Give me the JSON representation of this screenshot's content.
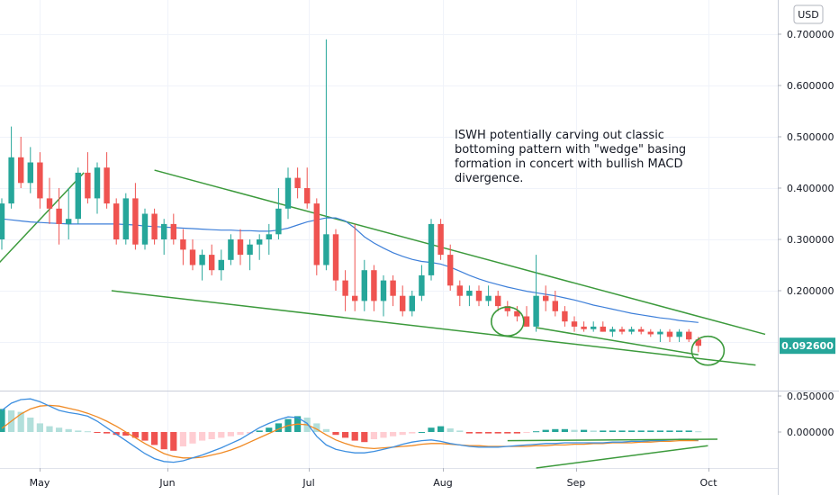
{
  "currency_badge": "USD",
  "annotation_lines": [
    "ISWH potentially carving out classic",
    "bottoming pattern with \"wedge\" basing",
    "formation in concert with bullish MACD",
    "divergence."
  ],
  "last_price_label": "0.092600",
  "colors": {
    "up": "#26a69a",
    "down": "#ef5350",
    "ma": "#3d7fd9",
    "trendline": "#3c9a3c",
    "macd": "#3d8fe0",
    "signal": "#f08a24",
    "hist_up_strong": "#26a69a",
    "hist_up_weak": "#b2dfdb",
    "hist_down_strong": "#ef5350",
    "hist_down_weak": "#ffcdd2",
    "grid": "#f0f3fa",
    "price_badge": "#26a69a"
  },
  "chart_data": [
    {
      "type": "candlestick",
      "title": "",
      "x_ticks": [
        "May",
        "Jun",
        "Jul",
        "Aug",
        "Sep",
        "Oct"
      ],
      "y_ticks": [
        "0.700000",
        "0.600000",
        "0.500000",
        "0.400000",
        "0.300000",
        "0.200000"
      ],
      "ylim": [
        0.01,
        0.76
      ],
      "grid": true,
      "candles": [
        [
          0.3,
          0.38,
          0.28,
          0.37
        ],
        [
          0.37,
          0.52,
          0.36,
          0.46
        ],
        [
          0.46,
          0.5,
          0.4,
          0.41
        ],
        [
          0.41,
          0.48,
          0.39,
          0.45
        ],
        [
          0.45,
          0.47,
          0.36,
          0.38
        ],
        [
          0.38,
          0.42,
          0.33,
          0.36
        ],
        [
          0.36,
          0.4,
          0.29,
          0.33
        ],
        [
          0.33,
          0.4,
          0.3,
          0.34
        ],
        [
          0.34,
          0.44,
          0.33,
          0.43
        ],
        [
          0.43,
          0.47,
          0.37,
          0.38
        ],
        [
          0.38,
          0.45,
          0.35,
          0.44
        ],
        [
          0.44,
          0.47,
          0.36,
          0.37
        ],
        [
          0.37,
          0.38,
          0.29,
          0.3
        ],
        [
          0.3,
          0.39,
          0.29,
          0.38
        ],
        [
          0.38,
          0.41,
          0.28,
          0.29
        ],
        [
          0.29,
          0.36,
          0.28,
          0.35
        ],
        [
          0.35,
          0.36,
          0.29,
          0.3
        ],
        [
          0.3,
          0.34,
          0.27,
          0.33
        ],
        [
          0.33,
          0.35,
          0.29,
          0.3
        ],
        [
          0.3,
          0.32,
          0.25,
          0.28
        ],
        [
          0.28,
          0.3,
          0.24,
          0.25
        ],
        [
          0.25,
          0.28,
          0.22,
          0.27
        ],
        [
          0.27,
          0.29,
          0.23,
          0.24
        ],
        [
          0.24,
          0.28,
          0.22,
          0.26
        ],
        [
          0.26,
          0.31,
          0.25,
          0.3
        ],
        [
          0.3,
          0.32,
          0.25,
          0.27
        ],
        [
          0.27,
          0.3,
          0.24,
          0.29
        ],
        [
          0.29,
          0.31,
          0.26,
          0.3
        ],
        [
          0.3,
          0.33,
          0.27,
          0.31
        ],
        [
          0.31,
          0.4,
          0.3,
          0.36
        ],
        [
          0.36,
          0.44,
          0.34,
          0.42
        ],
        [
          0.42,
          0.44,
          0.38,
          0.4
        ],
        [
          0.4,
          0.44,
          0.36,
          0.37
        ],
        [
          0.37,
          0.38,
          0.23,
          0.25
        ],
        [
          0.25,
          0.69,
          0.24,
          0.31
        ],
        [
          0.31,
          0.32,
          0.2,
          0.22
        ],
        [
          0.22,
          0.24,
          0.16,
          0.19
        ],
        [
          0.19,
          0.33,
          0.16,
          0.18
        ],
        [
          0.18,
          0.26,
          0.16,
          0.24
        ],
        [
          0.24,
          0.25,
          0.16,
          0.18
        ],
        [
          0.18,
          0.23,
          0.15,
          0.22
        ],
        [
          0.22,
          0.23,
          0.17,
          0.19
        ],
        [
          0.19,
          0.21,
          0.15,
          0.16
        ],
        [
          0.16,
          0.2,
          0.15,
          0.19
        ],
        [
          0.19,
          0.25,
          0.18,
          0.23
        ],
        [
          0.23,
          0.34,
          0.22,
          0.33
        ],
        [
          0.33,
          0.34,
          0.26,
          0.27
        ],
        [
          0.27,
          0.29,
          0.2,
          0.21
        ],
        [
          0.21,
          0.22,
          0.17,
          0.19
        ],
        [
          0.19,
          0.21,
          0.17,
          0.2
        ],
        [
          0.2,
          0.21,
          0.17,
          0.18
        ],
        [
          0.18,
          0.21,
          0.17,
          0.19
        ],
        [
          0.19,
          0.2,
          0.16,
          0.17
        ],
        [
          0.17,
          0.18,
          0.15,
          0.16
        ],
        [
          0.16,
          0.17,
          0.14,
          0.15
        ],
        [
          0.15,
          0.17,
          0.13,
          0.13
        ],
        [
          0.13,
          0.27,
          0.12,
          0.19
        ],
        [
          0.19,
          0.21,
          0.16,
          0.18
        ],
        [
          0.18,
          0.2,
          0.15,
          0.16
        ],
        [
          0.16,
          0.17,
          0.13,
          0.14
        ],
        [
          0.14,
          0.15,
          0.12,
          0.13
        ],
        [
          0.13,
          0.14,
          0.12,
          0.125
        ],
        [
          0.125,
          0.14,
          0.12,
          0.13
        ],
        [
          0.13,
          0.14,
          0.12,
          0.12
        ],
        [
          0.12,
          0.13,
          0.11,
          0.125
        ],
        [
          0.125,
          0.13,
          0.115,
          0.12
        ],
        [
          0.12,
          0.13,
          0.115,
          0.125
        ],
        [
          0.125,
          0.13,
          0.115,
          0.12
        ],
        [
          0.12,
          0.125,
          0.11,
          0.115
        ],
        [
          0.115,
          0.125,
          0.1,
          0.12
        ],
        [
          0.12,
          0.125,
          0.1,
          0.11
        ],
        [
          0.11,
          0.125,
          0.1,
          0.12
        ],
        [
          0.12,
          0.125,
          0.1,
          0.105
        ],
        [
          0.105,
          0.11,
          0.08,
          0.0926
        ]
      ],
      "moving_average": [
        0.34,
        0.338,
        0.336,
        0.334,
        0.333,
        0.332,
        0.331,
        0.33,
        0.33,
        0.33,
        0.33,
        0.33,
        0.33,
        0.329,
        0.328,
        0.326,
        0.325,
        0.324,
        0.323,
        0.322,
        0.321,
        0.32,
        0.319,
        0.318,
        0.318,
        0.317,
        0.317,
        0.316,
        0.316,
        0.318,
        0.322,
        0.328,
        0.334,
        0.338,
        0.342,
        0.342,
        0.336,
        0.322,
        0.305,
        0.293,
        0.283,
        0.274,
        0.267,
        0.261,
        0.257,
        0.255,
        0.252,
        0.246,
        0.238,
        0.23,
        0.223,
        0.217,
        0.212,
        0.207,
        0.203,
        0.199,
        0.196,
        0.193,
        0.19,
        0.186,
        0.182,
        0.177,
        0.172,
        0.168,
        0.164,
        0.16,
        0.156,
        0.153,
        0.15,
        0.147,
        0.145,
        0.142,
        0.14,
        0.138
      ],
      "trendlines": [
        {
          "from": [
            -1.0,
            0.24
          ],
          "to": [
            8.6,
            0.43
          ]
        },
        {
          "from": [
            16.0,
            0.435
          ],
          "to": [
            80.0,
            0.115
          ]
        },
        {
          "from": [
            11.5,
            0.2
          ],
          "to": [
            79.0,
            0.055
          ]
        },
        {
          "from": [
            56.0,
            0.128
          ],
          "to": [
            73.0,
            0.075
          ]
        }
      ],
      "circles": [
        [
          53.0,
          0.14
        ],
        [
          74.0,
          0.083
        ]
      ]
    },
    {
      "type": "macd",
      "title": "",
      "y_ticks": [
        "0.050000",
        "0.000000"
      ],
      "ylim": [
        -0.055,
        0.055
      ],
      "histogram": [
        0.032,
        0.03,
        0.028,
        0.02,
        0.012,
        0.008,
        0.006,
        0.004,
        0.002,
        0.001,
        -0.001,
        -0.002,
        -0.004,
        -0.005,
        -0.008,
        -0.012,
        -0.018,
        -0.024,
        -0.026,
        -0.02,
        -0.016,
        -0.012,
        -0.01,
        -0.008,
        -0.006,
        -0.004,
        -0.002,
        0.002,
        0.006,
        0.012,
        0.018,
        0.022,
        0.02,
        0.012,
        0.004,
        -0.004,
        -0.008,
        -0.012,
        -0.014,
        -0.01,
        -0.008,
        -0.006,
        -0.004,
        -0.002,
        0.0,
        0.006,
        0.008,
        0.005,
        0.002,
        -0.002,
        -0.002,
        -0.002,
        -0.002,
        -0.002,
        -0.002,
        -0.001,
        0.001,
        0.003,
        0.004,
        0.004,
        0.003,
        0.003,
        0.002,
        0.002,
        0.002,
        0.002,
        0.002,
        0.002,
        0.002,
        0.002,
        0.002,
        0.002,
        0.002,
        0.001
      ],
      "macd_line": [
        0.03,
        0.04,
        0.045,
        0.046,
        0.042,
        0.036,
        0.03,
        0.027,
        0.025,
        0.022,
        0.015,
        0.006,
        -0.003,
        -0.012,
        -0.021,
        -0.03,
        -0.037,
        -0.041,
        -0.042,
        -0.04,
        -0.036,
        -0.032,
        -0.027,
        -0.022,
        -0.016,
        -0.01,
        -0.002,
        0.006,
        0.012,
        0.017,
        0.021,
        0.02,
        0.012,
        -0.006,
        -0.018,
        -0.024,
        -0.027,
        -0.029,
        -0.029,
        -0.027,
        -0.024,
        -0.021,
        -0.017,
        -0.014,
        -0.012,
        -0.011,
        -0.013,
        -0.016,
        -0.018,
        -0.02,
        -0.021,
        -0.021,
        -0.021,
        -0.02,
        -0.019,
        -0.018,
        -0.017,
        -0.016,
        -0.016,
        -0.015,
        -0.015,
        -0.015,
        -0.015,
        -0.015,
        -0.014,
        -0.014,
        -0.013,
        -0.013,
        -0.012,
        -0.012,
        -0.011,
        -0.01,
        -0.01,
        -0.011
      ],
      "signal_line": [
        0.005,
        0.015,
        0.025,
        0.032,
        0.036,
        0.037,
        0.036,
        0.033,
        0.03,
        0.026,
        0.021,
        0.015,
        0.008,
        0.0,
        -0.008,
        -0.016,
        -0.023,
        -0.03,
        -0.034,
        -0.036,
        -0.036,
        -0.035,
        -0.032,
        -0.029,
        -0.025,
        -0.02,
        -0.014,
        -0.008,
        -0.002,
        0.004,
        0.009,
        0.011,
        0.01,
        0.004,
        -0.004,
        -0.011,
        -0.016,
        -0.02,
        -0.022,
        -0.023,
        -0.022,
        -0.021,
        -0.02,
        -0.019,
        -0.017,
        -0.016,
        -0.016,
        -0.017,
        -0.018,
        -0.019,
        -0.019,
        -0.02,
        -0.02,
        -0.02,
        -0.02,
        -0.02,
        -0.019,
        -0.019,
        -0.018,
        -0.018,
        -0.017,
        -0.017,
        -0.016,
        -0.016,
        -0.015,
        -0.015,
        -0.015,
        -0.014,
        -0.014,
        -0.013,
        -0.013,
        -0.012,
        -0.012,
        -0.012
      ],
      "trendlines": [
        {
          "from": [
            56.0,
            -0.05
          ],
          "to": [
            74.0,
            -0.019
          ]
        },
        {
          "from": [
            53.0,
            -0.012
          ],
          "to": [
            75.0,
            -0.01
          ]
        }
      ]
    }
  ]
}
